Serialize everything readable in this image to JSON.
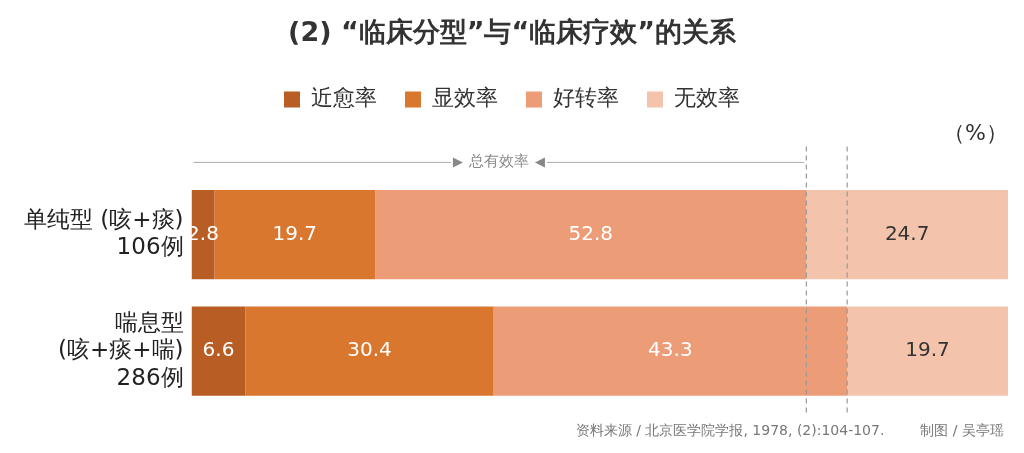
{
  "chart_data": {
    "type": "bar",
    "orientation": "horizontal",
    "stacked": true,
    "title": "(2) “临床分型”与“临床疗效”的关系",
    "categories": [
      "单纯型 (咳+痰) 106例",
      "喘息型 (咳+痰+喘) 286例"
    ],
    "series": [
      {
        "name": "近愈率",
        "color": "#b85e24",
        "values": [
          2.8,
          6.6
        ]
      },
      {
        "name": "显效率",
        "color": "#d9772f",
        "values": [
          19.7,
          30.4
        ]
      },
      {
        "name": "好转率",
        "color": "#ec9c76",
        "values": [
          52.8,
          43.3
        ]
      },
      {
        "name": "无效率",
        "color": "#f4c3ab",
        "values": [
          24.7,
          19.7
        ]
      }
    ],
    "xlim": [
      0,
      100
    ],
    "tick_labels": "y",
    "grid": false,
    "legend": "top",
    "data_labels": true,
    "ref_lines": [
      {
        "axis": "x",
        "value": 75.3,
        "color": "#999999",
        "line_style": "dashed"
      },
      {
        "axis": "x",
        "value": 80.3,
        "color": "#999999",
        "line_style": "dashed"
      }
    ],
    "annotations": [
      "总有效率",
      "（%）",
      "资料来源 / 北京医学院学报, 1978, (2):104-107.",
      "制图 / 吴亭瑶"
    ]
  }
}
